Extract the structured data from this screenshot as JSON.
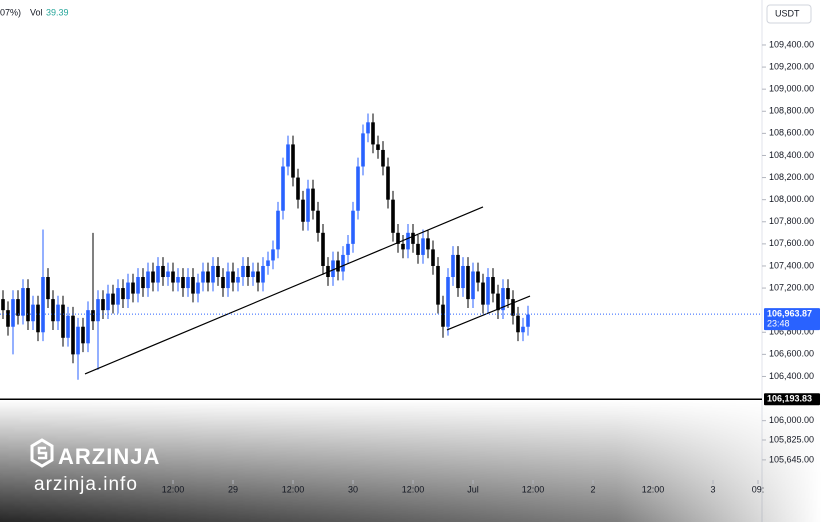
{
  "chart_data": {
    "type": "candlestick",
    "header_text": "07%)",
    "volume_label": "Vol",
    "volume": "39.39",
    "currency": "USDT",
    "up_color": "#2962ff",
    "down_color": "#000000",
    "x": [
      0,
      1,
      2,
      3,
      4,
      5,
      6,
      7,
      8,
      9,
      10,
      11,
      12,
      13,
      14,
      15,
      16,
      17,
      18,
      19,
      20,
      21,
      22,
      23,
      24,
      25,
      26,
      27,
      28,
      29,
      30,
      31,
      32,
      33,
      34,
      35,
      36,
      37,
      38,
      39,
      40,
      41,
      42,
      43,
      44,
      45,
      46,
      47,
      48,
      49,
      50,
      51,
      52,
      53,
      54,
      55,
      56,
      57,
      58,
      59,
      60,
      61,
      62,
      63,
      64,
      65,
      66,
      67,
      68,
      69,
      70,
      71,
      72,
      73,
      74,
      75,
      76,
      77,
      78,
      79,
      80,
      81,
      82,
      83,
      84,
      85,
      86,
      87,
      88,
      89,
      90,
      91,
      92,
      93,
      94,
      95,
      96,
      97,
      98,
      99,
      100,
      101,
      102,
      103,
      104,
      105
    ],
    "open": [
      107100,
      107000,
      106850,
      107100,
      106950,
      107200,
      106900,
      107050,
      106800,
      107300,
      107100,
      106900,
      107050,
      106750,
      106950,
      106600,
      106850,
      106700,
      107000,
      106900,
      107100,
      107000,
      107150,
      107050,
      107200,
      107100,
      107250,
      107150,
      107300,
      107200,
      107350,
      107250,
      107400,
      107300,
      107350,
      107250,
      107300,
      107200,
      107300,
      107150,
      107250,
      107350,
      107250,
      107400,
      107300,
      107200,
      107350,
      107250,
      107300,
      107400,
      107300,
      107350,
      107250,
      107400,
      107450,
      107550,
      107900,
      108300,
      108500,
      108200,
      108000,
      107800,
      108100,
      107900,
      107700,
      107400,
      107300,
      107450,
      107350,
      107500,
      107600,
      107900,
      108300,
      108600,
      108700,
      108500,
      108450,
      108300,
      108000,
      107700,
      107600,
      107550,
      107700,
      107600,
      107500,
      107650,
      107550,
      107400,
      107050,
      106850,
      107300,
      107500,
      107200,
      107400,
      107100,
      107350,
      107250,
      107050,
      107300,
      107150,
      107000,
      107200,
      107100,
      106950,
      106800,
      106850
    ],
    "high": [
      107180,
      107080,
      107180,
      107180,
      107280,
      107280,
      107130,
      107130,
      107730,
      107380,
      107180,
      107130,
      107130,
      107030,
      107030,
      106930,
      106930,
      107080,
      107700,
      107180,
      107180,
      107230,
      107230,
      107280,
      107280,
      107330,
      107330,
      107380,
      107380,
      107430,
      107430,
      107480,
      107480,
      107430,
      107430,
      107380,
      107380,
      107380,
      107380,
      107330,
      107430,
      107430,
      107480,
      107480,
      107380,
      107430,
      107430,
      107380,
      107480,
      107480,
      107430,
      107430,
      107480,
      107530,
      107630,
      107980,
      108380,
      108580,
      108580,
      108280,
      108080,
      108180,
      108180,
      107980,
      107780,
      107480,
      107530,
      107530,
      107580,
      107680,
      107980,
      108380,
      108680,
      108780,
      108780,
      108580,
      108530,
      108380,
      108080,
      107780,
      107680,
      107780,
      107780,
      107680,
      107730,
      107730,
      107630,
      107480,
      107130,
      107380,
      107580,
      107580,
      107480,
      107480,
      107430,
      107430,
      107330,
      107380,
      107380,
      107230,
      107280,
      107280,
      107180,
      107030,
      106930,
      107040
    ],
    "low": [
      106920,
      106770,
      106600,
      106870,
      106870,
      106820,
      106820,
      106720,
      106720,
      107020,
      106820,
      106820,
      106670,
      106670,
      106520,
      106370,
      106620,
      106620,
      106820,
      106460,
      106920,
      106920,
      106970,
      106970,
      107020,
      107020,
      107070,
      107070,
      107120,
      107120,
      107170,
      107170,
      107220,
      107220,
      107170,
      107170,
      107120,
      107120,
      107070,
      107070,
      107170,
      107170,
      107170,
      107220,
      107120,
      107120,
      107170,
      107170,
      107220,
      107220,
      107220,
      107170,
      107170,
      107320,
      107370,
      107470,
      107820,
      108220,
      108120,
      107920,
      107720,
      107720,
      107820,
      107620,
      107320,
      107220,
      107220,
      107270,
      107270,
      107420,
      107520,
      107820,
      108220,
      108520,
      108420,
      108370,
      108220,
      107920,
      107620,
      107520,
      107470,
      107470,
      107520,
      107420,
      107420,
      107470,
      107320,
      106970,
      106750,
      106770,
      107220,
      107120,
      107120,
      107020,
      107020,
      107170,
      106970,
      106970,
      107070,
      106920,
      106920,
      107020,
      106870,
      106720,
      106720,
      106770
    ],
    "close": [
      107000,
      106850,
      107100,
      106950,
      107200,
      106900,
      107050,
      106800,
      107300,
      107100,
      106900,
      107050,
      106750,
      106950,
      106600,
      106850,
      106700,
      107000,
      106900,
      107100,
      107000,
      107150,
      107050,
      107200,
      107100,
      107250,
      107150,
      107300,
      107200,
      107350,
      107250,
      107400,
      107300,
      107350,
      107250,
      107300,
      107200,
      107300,
      107150,
      107250,
      107350,
      107250,
      107400,
      107300,
      107200,
      107350,
      107250,
      107300,
      107400,
      107300,
      107350,
      107250,
      107400,
      107450,
      107550,
      107900,
      108300,
      108500,
      108200,
      108000,
      107800,
      108100,
      107900,
      107700,
      107400,
      107300,
      107450,
      107350,
      107500,
      107600,
      107900,
      108300,
      108600,
      108700,
      108500,
      108450,
      108300,
      108000,
      107700,
      107600,
      107550,
      107700,
      107600,
      107500,
      107650,
      107550,
      107400,
      107050,
      106850,
      107300,
      107500,
      107200,
      107400,
      107100,
      107350,
      107250,
      107050,
      107300,
      107150,
      107000,
      107200,
      107100,
      106950,
      106800,
      106850,
      106960
    ],
    "xlim": [
      -0.6,
      151.8
    ],
    "xticks": [
      {
        "value": 34,
        "label": "12:00"
      },
      {
        "value": 46,
        "label": "29"
      },
      {
        "value": 58,
        "label": "12:00"
      },
      {
        "value": 70,
        "label": "30"
      },
      {
        "value": 82,
        "label": "12:00"
      },
      {
        "value": 94,
        "label": "Jul"
      },
      {
        "value": 106,
        "label": "12:00"
      },
      {
        "value": 118,
        "label": "2"
      },
      {
        "value": 130,
        "label": "12:00"
      },
      {
        "value": 142,
        "label": "3"
      },
      {
        "value": 151,
        "label": "09:"
      }
    ],
    "ylim": [
      105463,
      109807
    ],
    "yticks": [
      {
        "value": 109400,
        "label": "109,400.00"
      },
      {
        "value": 109200,
        "label": "109,200.00"
      },
      {
        "value": 109000,
        "label": "109,000.00"
      },
      {
        "value": 108800,
        "label": "108,800.00"
      },
      {
        "value": 108600,
        "label": "108,600.00"
      },
      {
        "value": 108400,
        "label": "108,400.00"
      },
      {
        "value": 108200,
        "label": "108,200.00"
      },
      {
        "value": 108000,
        "label": "108,000.00"
      },
      {
        "value": 107800,
        "label": "107,800.00"
      },
      {
        "value": 107600,
        "label": "107,600.00"
      },
      {
        "value": 107400,
        "label": "107,400.00"
      },
      {
        "value": 107200,
        "label": "107,200.00"
      },
      {
        "value": 106800,
        "label": "106,800.00"
      },
      {
        "value": 106600,
        "label": "106,600.00"
      },
      {
        "value": 106400,
        "label": "106,400.00"
      },
      {
        "value": 106000,
        "label": "106,000.00"
      },
      {
        "value": 105825,
        "label": "105,825.00"
      },
      {
        "value": 105645,
        "label": "105,645.00"
      }
    ],
    "price_lines": [
      {
        "value": 106963.87,
        "label": "106,963.87",
        "time_label": "23:48",
        "color": "#2962ff",
        "style": "dotted"
      },
      {
        "value": 106193.83,
        "label": "106,193.83",
        "color": "#000000",
        "style": "solid"
      }
    ],
    "trendlines": [
      {
        "x": [
          16.4,
          96
        ],
        "y": [
          106423,
          107934
        ],
        "color": "#000000"
      },
      {
        "x": [
          88.8,
          105.4
        ],
        "y": [
          106821,
          107128
        ],
        "color": "#000000"
      }
    ],
    "watermark": {
      "brand": "ARZINJA",
      "site": "arzinja.info"
    }
  }
}
